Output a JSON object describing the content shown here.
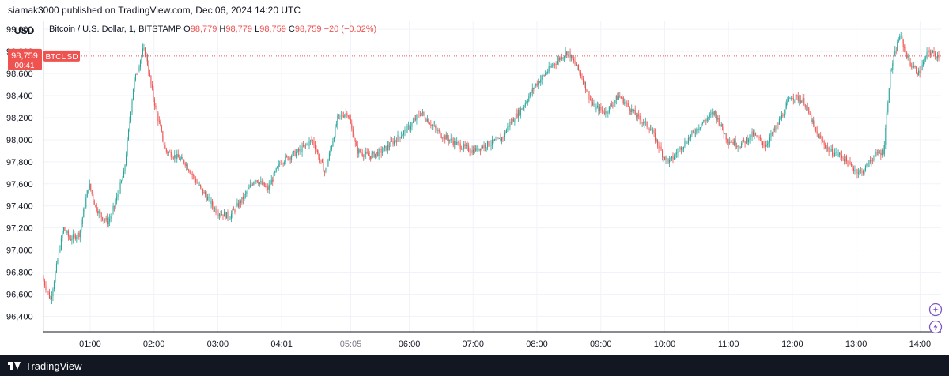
{
  "topbar": {
    "publisher_text": "siamak3000 published on TradingView.com, Dec 06, 2024 14:20 UTC"
  },
  "footer": {
    "brand": "TradingView"
  },
  "colors": {
    "up": "#26a69a",
    "down": "#ef5350",
    "grid": "#f0f3fa",
    "axis_text": "#131722",
    "price_line": "#ef5350",
    "badge_purple": "#7e57c2"
  },
  "icons": [
    "plus-circle-icon",
    "lightning-circle-icon",
    "tradingview-logo-icon"
  ],
  "legend": {
    "currency": "USD",
    "title": "Bitcoin / U.S. Dollar, 1, BITSTAMP",
    "o_label": "O",
    "o_value": "98,779",
    "h_label": "H",
    "h_value": "98,779",
    "l_label": "L",
    "l_value": "98,759",
    "c_label": "C",
    "c_value": "98,759",
    "change": "−20 (−0.02%)"
  },
  "price_badge": {
    "price": "98,759",
    "countdown": "00:41",
    "symbol": "BTCUSD"
  },
  "chart_data": {
    "type": "candlestick",
    "last_price": 98759,
    "ylim": [
      96260,
      99080
    ],
    "y_ticks": [
      96400,
      96600,
      96800,
      97000,
      97200,
      97400,
      97600,
      97800,
      98000,
      98200,
      98400,
      98600,
      98800,
      99000
    ],
    "y_tick_labels": [
      "96,400",
      "96,600",
      "96,800",
      "97,000",
      "97,200",
      "97,400",
      "97,600",
      "97,800",
      "98,000",
      "98,200",
      "98,400",
      "98,600",
      "98,800",
      "99,000"
    ],
    "x_range_hours": [
      0.27,
      14.33
    ],
    "x_ticks": [
      1,
      2,
      3,
      4,
      5.083,
      6,
      7,
      8,
      9,
      10,
      11,
      12,
      13,
      14
    ],
    "x_tick_labels": [
      "01:00",
      "02:00",
      "03:00",
      "04:01",
      "05:05",
      "06:00",
      "07:00",
      "08:00",
      "09:00",
      "10:00",
      "11:00",
      "12:00",
      "13:00",
      "14:00"
    ],
    "x_tick_emphasis": [
      false,
      false,
      false,
      false,
      true,
      false,
      false,
      false,
      false,
      false,
      false,
      false,
      false,
      false
    ],
    "path_keypoints_time_hours": [
      0.27,
      0.4,
      0.6,
      0.7,
      0.85,
      1.0,
      1.05,
      1.1,
      1.2,
      1.3,
      1.4,
      1.55,
      1.7,
      1.85,
      1.9,
      2.0,
      2.2,
      2.5,
      2.7,
      3.0,
      3.2,
      3.45,
      3.6,
      3.8,
      4.0,
      4.3,
      4.5,
      4.7,
      4.9,
      5.05,
      5.2,
      5.4,
      5.6,
      5.8,
      6.0,
      6.2,
      6.5,
      6.8,
      7.0,
      7.2,
      7.45,
      7.6,
      7.8,
      8.0,
      8.3,
      8.5,
      8.7,
      8.9,
      9.1,
      9.3,
      9.6,
      9.8,
      10.0,
      10.1,
      10.3,
      10.6,
      10.8,
      11.0,
      11.2,
      11.4,
      11.6,
      11.8,
      12.0,
      12.2,
      12.4,
      12.6,
      12.8,
      12.95,
      13.1,
      13.3,
      13.45,
      13.55,
      13.7,
      13.85,
      14.0,
      14.15,
      14.33
    ],
    "path_keypoints_price": [
      96750,
      96550,
      97200,
      97100,
      97150,
      97600,
      97500,
      97400,
      97300,
      97250,
      97400,
      97700,
      98500,
      98820,
      98750,
      98400,
      97900,
      97800,
      97600,
      97350,
      97300,
      97500,
      97650,
      97550,
      97800,
      97900,
      98000,
      97700,
      98200,
      98250,
      97900,
      97850,
      97900,
      98000,
      98100,
      98250,
      98050,
      97950,
      97900,
      97950,
      98000,
      98150,
      98300,
      98500,
      98700,
      98800,
      98600,
      98300,
      98250,
      98400,
      98200,
      98100,
      97850,
      97800,
      97950,
      98150,
      98250,
      98000,
      97950,
      98050,
      97950,
      98150,
      98400,
      98350,
      98050,
      97900,
      97850,
      97750,
      97700,
      97850,
      97900,
      98600,
      98950,
      98700,
      98600,
      98800,
      98750
    ],
    "session": "Dec 06, 2024 UTC, 1-minute bars"
  }
}
